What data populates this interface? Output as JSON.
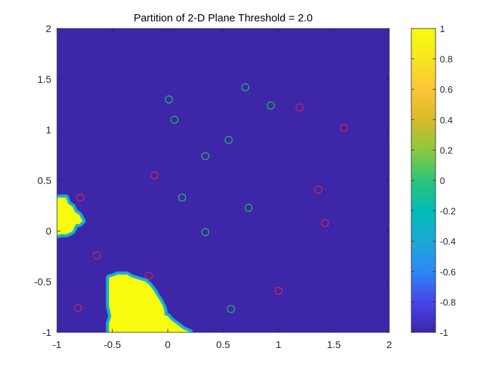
{
  "chart_data": {
    "type": "scatter",
    "title": "Partition of 2-D Plane Threshold = 2.0",
    "xlabel": "",
    "ylabel": "",
    "xlim": [
      -1,
      2
    ],
    "ylim": [
      -1,
      2
    ],
    "x_ticks": [
      "-1",
      "-0.5",
      "0",
      "0.5",
      "1",
      "1.5",
      "2"
    ],
    "y_ticks": [
      "-1",
      "-0.5",
      "0",
      "0.5",
      "1",
      "1.5",
      "2"
    ],
    "background_value": -1,
    "background_color": "#3e26a8",
    "region_color": "#f9fb0e",
    "edge_colors": [
      "#23b6c4",
      "#11a5d9"
    ],
    "regions": [
      {
        "value": 1,
        "polygon": [
          [
            -1.0,
            0.33
          ],
          [
            -0.92,
            0.33
          ],
          [
            -0.9,
            0.27
          ],
          [
            -0.86,
            0.24
          ],
          [
            -0.84,
            0.19
          ],
          [
            -0.8,
            0.16
          ],
          [
            -0.77,
            0.1
          ],
          [
            -0.8,
            0.07
          ],
          [
            -0.83,
            0.07
          ],
          [
            -0.86,
            0.0
          ],
          [
            -0.89,
            -0.02
          ],
          [
            -0.92,
            -0.03
          ],
          [
            -0.97,
            -0.03
          ],
          [
            -1.0,
            -0.04
          ]
        ]
      },
      {
        "value": 1,
        "polygon": [
          [
            -0.53,
            -1.0
          ],
          [
            -0.53,
            -0.91
          ],
          [
            -0.51,
            -0.84
          ],
          [
            -0.53,
            -0.74
          ],
          [
            -0.53,
            -0.46
          ],
          [
            -0.5,
            -0.45
          ],
          [
            -0.45,
            -0.43
          ],
          [
            -0.37,
            -0.43
          ],
          [
            -0.32,
            -0.46
          ],
          [
            -0.2,
            -0.5
          ],
          [
            -0.17,
            -0.53
          ],
          [
            -0.14,
            -0.57
          ],
          [
            -0.12,
            -0.6
          ],
          [
            -0.1,
            -0.64
          ],
          [
            -0.08,
            -0.67
          ],
          [
            -0.06,
            -0.71
          ],
          [
            -0.04,
            -0.75
          ],
          [
            -0.03,
            -0.79
          ],
          [
            -0.03,
            -0.83
          ],
          [
            -0.0,
            -0.84
          ],
          [
            0.03,
            -0.88
          ],
          [
            0.08,
            -0.92
          ],
          [
            0.14,
            -0.97
          ],
          [
            0.2,
            -1.0
          ]
        ]
      }
    ],
    "series": [
      {
        "class": "green",
        "color": "#22c55e",
        "points": [
          [
            0.01,
            1.3
          ],
          [
            0.06,
            1.1
          ],
          [
            0.7,
            1.42
          ],
          [
            0.93,
            1.24
          ],
          [
            0.55,
            0.9
          ],
          [
            0.34,
            0.74
          ],
          [
            0.13,
            0.33
          ],
          [
            0.73,
            0.23
          ],
          [
            0.34,
            -0.01
          ],
          [
            0.57,
            -0.77
          ]
        ]
      },
      {
        "class": "red",
        "color": "#d62757",
        "points": [
          [
            1.19,
            1.22
          ],
          [
            1.59,
            1.02
          ],
          [
            -0.12,
            0.55
          ],
          [
            1.36,
            0.41
          ],
          [
            -0.79,
            0.33
          ],
          [
            1.42,
            0.08
          ],
          [
            -0.64,
            -0.24
          ],
          [
            -0.17,
            -0.44
          ],
          [
            1.0,
            -0.59
          ],
          [
            -0.81,
            -0.76
          ]
        ]
      }
    ],
    "colorbar": {
      "ticks": [
        "-1",
        "-0.8",
        "-0.6",
        "-0.4",
        "-0.2",
        "0",
        "0.2",
        "0.4",
        "0.6",
        "0.8",
        "1"
      ],
      "range": [
        -1,
        1
      ],
      "colormap": "parula",
      "stops": [
        "#3e26a8",
        "#4744e9",
        "#2e87f7",
        "#1ba9d7",
        "#02bcb5",
        "#2ec37b",
        "#8bc93e",
        "#d8ba2a",
        "#fcc537",
        "#f6e61f",
        "#f9fb0e"
      ]
    }
  }
}
